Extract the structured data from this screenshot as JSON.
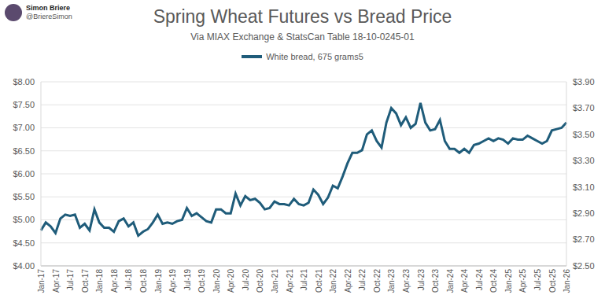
{
  "chart_data": {
    "type": "line",
    "title": "Spring Wheat Futures vs Bread Price",
    "subtitle": "Via MIAX Exchange & StatsCan Table 18-10-0245-01",
    "annotations": [
      "Simon Briere",
      "@BriereSimon"
    ],
    "categories": [
      "Jan-17",
      null,
      null,
      "Apr-17",
      null,
      null,
      "Jul-17",
      null,
      null,
      "Oct-17",
      null,
      null,
      "Jan-18",
      null,
      null,
      "Apr-18",
      null,
      null,
      "Jul-18",
      null,
      null,
      "Oct-18",
      null,
      null,
      "Jan-19",
      null,
      null,
      "Apr-19",
      null,
      null,
      "Jul-19",
      null,
      null,
      "Oct-19",
      null,
      null,
      "Jan-20",
      null,
      null,
      "Apr-20",
      null,
      null,
      "Jul-20",
      null,
      null,
      "Oct-20",
      null,
      null,
      "Jan-21",
      null,
      null,
      "Apr-21",
      null,
      null,
      "Jul-21",
      null,
      null,
      "Oct-21",
      null,
      null,
      "Jan-22",
      null,
      null,
      "Apr-22",
      null,
      null,
      "Jul-22",
      null,
      null,
      "Oct-22",
      null,
      null,
      "Jan-23",
      null,
      null,
      "Apr-23",
      null,
      null,
      "Jul-23",
      null,
      null,
      "Oct-23",
      null,
      null,
      "Jan-24",
      null,
      null,
      "Apr-24",
      null,
      null,
      "Jul-24",
      null,
      null,
      "Oct-24",
      null,
      null,
      "Jan-25",
      null,
      null,
      "Apr-25",
      null,
      null,
      "Jul-25",
      null,
      null,
      "Oct-25",
      null,
      null,
      "Jan-26"
    ],
    "series": [
      {
        "name": "White bread, 675 grams5",
        "color": "#1f5c7a",
        "axis": "y2",
        "values": [
          2.77,
          2.83,
          2.8,
          2.75,
          2.86,
          2.89,
          2.88,
          2.89,
          2.79,
          2.82,
          2.77,
          2.93,
          2.83,
          2.79,
          2.79,
          2.76,
          2.84,
          2.86,
          2.8,
          2.83,
          2.73,
          2.76,
          2.78,
          2.83,
          2.89,
          2.82,
          2.83,
          2.82,
          2.84,
          2.85,
          2.94,
          2.88,
          2.9,
          2.87,
          2.84,
          2.83,
          2.93,
          2.93,
          2.9,
          2.9,
          3.05,
          2.96,
          3.03,
          3.0,
          3.01,
          2.98,
          2.93,
          2.94,
          2.99,
          2.97,
          2.97,
          2.96,
          3.01,
          2.97,
          2.96,
          2.98,
          3.08,
          3.04,
          2.97,
          3.02,
          3.11,
          3.09,
          3.18,
          3.28,
          3.36,
          3.36,
          3.38,
          3.5,
          3.53,
          3.45,
          3.4,
          3.59,
          3.7,
          3.66,
          3.57,
          3.63,
          3.55,
          3.58,
          3.74,
          3.59,
          3.53,
          3.54,
          3.61,
          3.45,
          3.39,
          3.39,
          3.36,
          3.39,
          3.36,
          3.42,
          3.43,
          3.45,
          3.47,
          3.45,
          3.47,
          3.46,
          3.43,
          3.47,
          3.46,
          3.46,
          3.49,
          3.47,
          3.45,
          3.43,
          3.45,
          3.53,
          3.54,
          3.55,
          3.59
        ]
      }
    ],
    "ylim": [
      4,
      8
    ],
    "yticks": [
      {
        "value": 4,
        "label": "$4.00"
      },
      {
        "value": 4.5,
        "label": "$4.50"
      },
      {
        "value": 5,
        "label": "$5.00"
      },
      {
        "value": 5.5,
        "label": "$5.50"
      },
      {
        "value": 6,
        "label": "$6.00"
      },
      {
        "value": 6.5,
        "label": "$6.50"
      },
      {
        "value": 7,
        "label": "$7.00"
      },
      {
        "value": 7.5,
        "label": "$7.50"
      },
      {
        "value": 8,
        "label": "$8.00"
      }
    ],
    "y2lim": [
      2.5,
      3.9
    ],
    "y2ticks": [
      {
        "value": 2.5,
        "label": "$2.50"
      },
      {
        "value": 2.7,
        "label": "$2.70"
      },
      {
        "value": 2.9,
        "label": "$2.90"
      },
      {
        "value": 3.1,
        "label": "$3.10"
      },
      {
        "value": 3.3,
        "label": "$3.30"
      },
      {
        "value": 3.5,
        "label": "$3.50"
      },
      {
        "value": 3.7,
        "label": "$3.70"
      },
      {
        "value": 3.9,
        "label": "$3.90"
      }
    ],
    "grid": true,
    "legend": "top"
  }
}
